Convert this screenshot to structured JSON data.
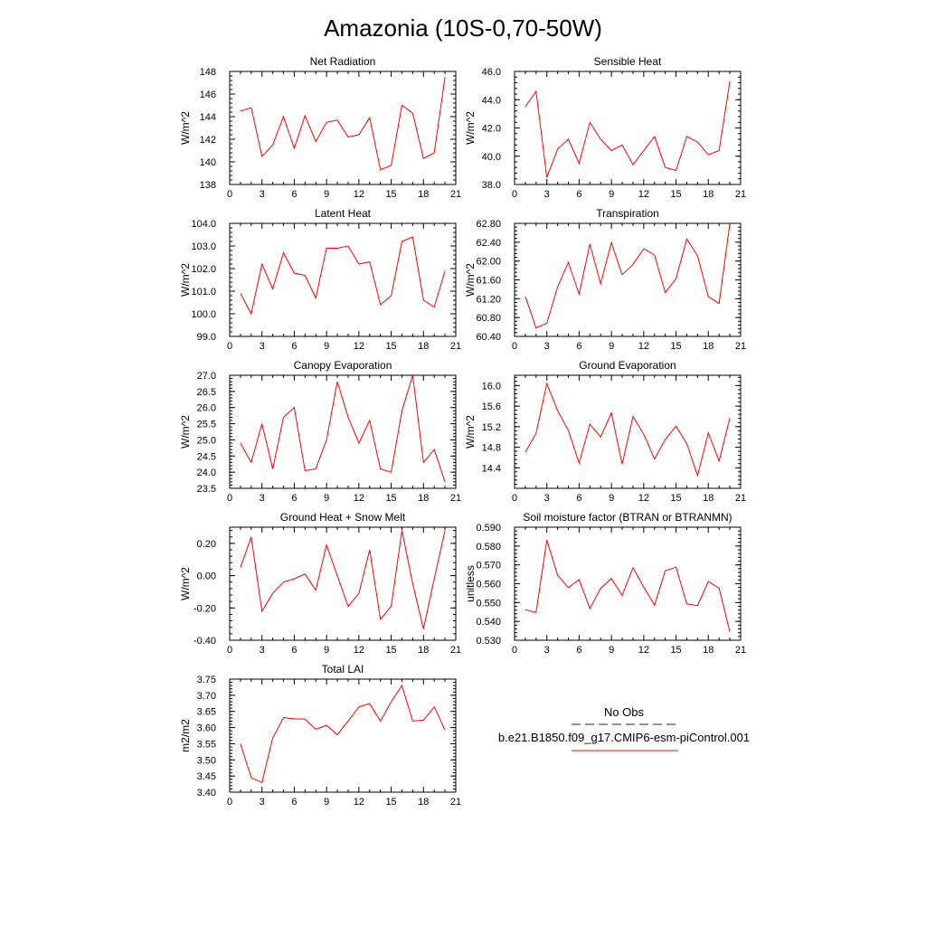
{
  "figure": {
    "title": "Amazonia (10S-0,70-50W)"
  },
  "legend": {
    "items": [
      {
        "label": "No Obs",
        "color": "#1a1a80",
        "dash": "dashed"
      },
      {
        "label": "b.e21.B1850.f09_g17.CMIP6-esm-piControl.001",
        "color": "#ff0000",
        "dash": "solid"
      }
    ]
  },
  "chart_data": [
    {
      "type": "line",
      "title": "Net Radiation",
      "ylabel": "W/m^2",
      "xlim": [
        0,
        21
      ],
      "ylim": [
        138,
        148
      ],
      "xticks": [
        0,
        3,
        6,
        9,
        12,
        15,
        18,
        21
      ],
      "xticklabels": [
        "0",
        "3",
        "6",
        "9",
        "12",
        "15",
        "18",
        "21"
      ],
      "yticks": [
        138,
        140,
        142,
        144,
        146,
        148
      ],
      "yticklabels": [
        "138",
        "140",
        "142",
        "144",
        "146",
        "148"
      ],
      "series": [
        {
          "color": "#ff0000",
          "x": [
            1,
            2,
            3,
            4,
            5,
            6,
            7,
            8,
            9,
            10,
            11,
            12,
            13,
            14,
            15,
            16,
            17,
            18,
            19,
            20
          ],
          "values": [
            144.5,
            144.8,
            140.5,
            141.5,
            144.0,
            141.2,
            144.1,
            141.8,
            143.5,
            143.7,
            142.2,
            142.4,
            143.9,
            139.3,
            139.7,
            145.0,
            144.3,
            140.3,
            140.8,
            147.5
          ]
        }
      ]
    },
    {
      "type": "line",
      "title": "Sensible Heat",
      "ylabel": "W/m^2",
      "xlim": [
        0,
        21
      ],
      "ylim": [
        38,
        46
      ],
      "xticks": [
        0,
        3,
        6,
        9,
        12,
        15,
        18,
        21
      ],
      "xticklabels": [
        "0",
        "3",
        "6",
        "9",
        "12",
        "15",
        "18",
        "21"
      ],
      "yticks": [
        38,
        40,
        42,
        44,
        46
      ],
      "yticklabels": [
        "38.0",
        "40.0",
        "42.0",
        "44.0",
        "46.0"
      ],
      "series": [
        {
          "color": "#ff0000",
          "x": [
            1,
            2,
            3,
            4,
            5,
            6,
            7,
            8,
            9,
            10,
            11,
            12,
            13,
            14,
            15,
            16,
            17,
            18,
            19,
            20
          ],
          "values": [
            43.5,
            44.6,
            38.5,
            40.5,
            41.2,
            39.5,
            42.4,
            41.2,
            40.4,
            40.8,
            39.4,
            40.4,
            41.4,
            39.2,
            39.0,
            41.4,
            41.0,
            40.1,
            40.4,
            45.3
          ]
        }
      ]
    },
    {
      "type": "line",
      "title": "Latent Heat",
      "ylabel": "W/m^2",
      "xlim": [
        0,
        21
      ],
      "ylim": [
        99,
        104
      ],
      "xticks": [
        0,
        3,
        6,
        9,
        12,
        15,
        18,
        21
      ],
      "xticklabels": [
        "0",
        "3",
        "6",
        "9",
        "12",
        "15",
        "18",
        "21"
      ],
      "yticks": [
        99,
        100,
        101,
        102,
        103,
        104
      ],
      "yticklabels": [
        "99.0",
        "100.0",
        "101.0",
        "102.0",
        "103.0",
        "104.0"
      ],
      "series": [
        {
          "color": "#ff0000",
          "x": [
            1,
            2,
            3,
            4,
            5,
            6,
            7,
            8,
            9,
            10,
            11,
            12,
            13,
            14,
            15,
            16,
            17,
            18,
            19,
            20
          ],
          "values": [
            100.9,
            100.0,
            102.2,
            101.1,
            102.7,
            101.8,
            101.7,
            100.7,
            102.9,
            102.9,
            103.0,
            102.2,
            102.3,
            100.4,
            100.8,
            103.2,
            103.4,
            100.6,
            100.3,
            101.9
          ]
        }
      ]
    },
    {
      "type": "line",
      "title": "Transpiration",
      "ylabel": "W/m^2",
      "xlim": [
        0,
        21
      ],
      "ylim": [
        60.4,
        62.8
      ],
      "xticks": [
        0,
        3,
        6,
        9,
        12,
        15,
        18,
        21
      ],
      "xticklabels": [
        "0",
        "3",
        "6",
        "9",
        "12",
        "15",
        "18",
        "21"
      ],
      "yticks": [
        60.4,
        60.8,
        61.2,
        61.6,
        62.0,
        62.4,
        62.8
      ],
      "yticklabels": [
        "60.40",
        "60.80",
        "61.20",
        "61.60",
        "62.00",
        "62.40",
        "62.80"
      ],
      "series": [
        {
          "color": "#ff0000",
          "x": [
            1,
            2,
            3,
            4,
            5,
            6,
            7,
            8,
            9,
            10,
            11,
            12,
            13,
            14,
            15,
            16,
            17,
            18,
            19,
            20
          ],
          "values": [
            61.25,
            60.58,
            60.68,
            61.45,
            61.97,
            61.3,
            62.36,
            61.52,
            62.39,
            61.71,
            61.93,
            62.26,
            62.13,
            61.33,
            61.63,
            62.47,
            62.11,
            61.24,
            61.1,
            62.8
          ]
        }
      ]
    },
    {
      "type": "line",
      "title": "Canopy Evaporation",
      "ylabel": "W/m^2",
      "xlim": [
        0,
        21
      ],
      "ylim": [
        23.5,
        27
      ],
      "xticks": [
        0,
        3,
        6,
        9,
        12,
        15,
        18,
        21
      ],
      "xticklabels": [
        "0",
        "3",
        "6",
        "9",
        "12",
        "15",
        "18",
        "21"
      ],
      "yticks": [
        23.5,
        24,
        24.5,
        25,
        25.5,
        26,
        26.5,
        27
      ],
      "yticklabels": [
        "23.5",
        "24.0",
        "24.5",
        "25.0",
        "25.5",
        "26.0",
        "26.5",
        "27.0"
      ],
      "series": [
        {
          "color": "#ff0000",
          "x": [
            1,
            2,
            3,
            4,
            5,
            6,
            7,
            8,
            9,
            10,
            11,
            12,
            13,
            14,
            15,
            16,
            17,
            18,
            19,
            20
          ],
          "values": [
            24.9,
            24.3,
            25.5,
            24.1,
            25.7,
            26.0,
            24.05,
            24.1,
            25.0,
            26.8,
            25.7,
            24.9,
            25.6,
            24.1,
            24.0,
            25.9,
            27.0,
            24.3,
            24.7,
            23.7
          ]
        }
      ]
    },
    {
      "type": "line",
      "title": "Ground Evaporation",
      "ylabel": "W/m^2",
      "xlim": [
        0,
        21
      ],
      "ylim": [
        14.0,
        16.2
      ],
      "xticks": [
        0,
        3,
        6,
        9,
        12,
        15,
        18,
        21
      ],
      "xticklabels": [
        "0",
        "3",
        "6",
        "9",
        "12",
        "15",
        "18",
        "21"
      ],
      "yticks": [
        14.4,
        14.8,
        15.2,
        15.6,
        16.0
      ],
      "yticklabels": [
        "14.4",
        "14.8",
        "15.2",
        "15.6",
        "16.0"
      ],
      "series": [
        {
          "color": "#ff0000",
          "x": [
            1,
            2,
            3,
            4,
            5,
            6,
            7,
            8,
            9,
            10,
            11,
            12,
            13,
            14,
            15,
            16,
            17,
            18,
            19,
            20
          ],
          "values": [
            14.7,
            15.07,
            16.04,
            15.51,
            15.13,
            14.49,
            15.25,
            15.0,
            15.47,
            14.47,
            15.4,
            15.05,
            14.57,
            14.95,
            15.21,
            14.87,
            14.25,
            15.08,
            14.53,
            15.37
          ]
        }
      ]
    },
    {
      "type": "line",
      "title": "Ground Heat + Snow Melt",
      "ylabel": "W/m^2",
      "xlim": [
        0,
        21
      ],
      "ylim": [
        -0.4,
        0.3
      ],
      "xticks": [
        0,
        3,
        6,
        9,
        12,
        15,
        18,
        21
      ],
      "xticklabels": [
        "0",
        "3",
        "6",
        "9",
        "12",
        "15",
        "18",
        "21"
      ],
      "yticks": [
        -0.4,
        -0.2,
        0.0,
        0.2
      ],
      "yticklabels": [
        "-0.40",
        "-0.20",
        "0.00",
        "0.20"
      ],
      "series": [
        {
          "color": "#ff0000",
          "x": [
            1,
            2,
            3,
            4,
            5,
            6,
            7,
            8,
            9,
            10,
            11,
            12,
            13,
            14,
            15,
            16,
            17,
            18,
            19,
            20
          ],
          "values": [
            0.05,
            0.24,
            -0.22,
            -0.11,
            -0.04,
            -0.02,
            0.01,
            -0.09,
            0.19,
            0.0,
            -0.19,
            -0.11,
            0.16,
            -0.27,
            -0.19,
            0.28,
            -0.05,
            -0.33,
            -0.02,
            0.28
          ]
        }
      ]
    },
    {
      "type": "line",
      "title": "Soil moisture factor (BTRAN or BTRANMN)",
      "ylabel": "unitless",
      "xlim": [
        0,
        21
      ],
      "ylim": [
        0.53,
        0.59
      ],
      "xticks": [
        0,
        3,
        6,
        9,
        12,
        15,
        18,
        21
      ],
      "xticklabels": [
        "0",
        "3",
        "6",
        "9",
        "12",
        "15",
        "18",
        "21"
      ],
      "yticks": [
        0.53,
        0.54,
        0.55,
        0.56,
        0.57,
        0.58,
        0.59
      ],
      "yticklabels": [
        "0.530",
        "0.540",
        "0.550",
        "0.560",
        "0.570",
        "0.580",
        "0.590"
      ],
      "series": [
        {
          "color": "#ff0000",
          "x": [
            1,
            2,
            3,
            4,
            5,
            6,
            7,
            8,
            9,
            10,
            11,
            12,
            13,
            14,
            15,
            16,
            17,
            18,
            19,
            20
          ],
          "values": [
            0.5462,
            0.5448,
            0.5832,
            0.5646,
            0.5579,
            0.5622,
            0.5468,
            0.5575,
            0.5628,
            0.5538,
            0.5685,
            0.5582,
            0.5486,
            0.5669,
            0.5688,
            0.5493,
            0.5484,
            0.5612,
            0.5576,
            0.5345
          ]
        }
      ]
    },
    {
      "type": "line",
      "title": "Total LAI",
      "ylabel": "m2/m2",
      "xlim": [
        0,
        21
      ],
      "ylim": [
        3.4,
        3.75
      ],
      "xticks": [
        0,
        3,
        6,
        9,
        12,
        15,
        18,
        21
      ],
      "xticklabels": [
        "0",
        "3",
        "6",
        "9",
        "12",
        "15",
        "18",
        "21"
      ],
      "yticks": [
        3.4,
        3.45,
        3.5,
        3.55,
        3.6,
        3.65,
        3.7,
        3.75
      ],
      "yticklabels": [
        "3.40",
        "3.45",
        "3.50",
        "3.55",
        "3.60",
        "3.65",
        "3.70",
        "3.75"
      ],
      "series": [
        {
          "color": "#ff0000",
          "x": [
            1,
            2,
            3,
            4,
            5,
            6,
            7,
            8,
            9,
            10,
            11,
            12,
            13,
            14,
            15,
            16,
            17,
            18,
            19,
            20
          ],
          "values": [
            3.55,
            3.445,
            3.43,
            3.568,
            3.631,
            3.627,
            3.626,
            3.595,
            3.607,
            3.578,
            3.62,
            3.664,
            3.674,
            3.62,
            3.68,
            3.73,
            3.62,
            3.623,
            3.664,
            3.592
          ]
        }
      ]
    }
  ]
}
